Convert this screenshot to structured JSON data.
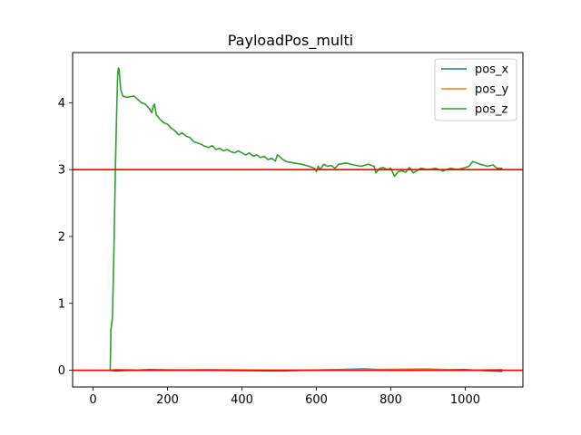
{
  "chart_data": {
    "type": "line",
    "title": "PayloadPos_multi",
    "xlabel": "",
    "ylabel": "",
    "xlim": [
      -55,
      1155
    ],
    "ylim": [
      -0.25,
      4.75
    ],
    "xticks": [
      0,
      200,
      400,
      600,
      800,
      1000
    ],
    "yticks": [
      0,
      1,
      2,
      3,
      4
    ],
    "legend_position": "top-right",
    "grid": false,
    "series": [
      {
        "name": "pos_x",
        "color": "#1f77b4",
        "points": [
          [
            46,
            0.0
          ],
          [
            60,
            -0.01
          ],
          [
            150,
            0.01
          ],
          [
            300,
            0.0
          ],
          [
            500,
            -0.01
          ],
          [
            730,
            0.02
          ],
          [
            800,
            0.0
          ],
          [
            1000,
            0.01
          ],
          [
            1100,
            -0.02
          ]
        ]
      },
      {
        "name": "pos_y",
        "color": "#ff7f0e",
        "points": [
          [
            46,
            0.0
          ],
          [
            60,
            0.01
          ],
          [
            150,
            0.0
          ],
          [
            300,
            0.01
          ],
          [
            500,
            0.0
          ],
          [
            730,
            0.01
          ],
          [
            900,
            0.02
          ],
          [
            1000,
            0.0
          ],
          [
            1100,
            0.01
          ]
        ]
      },
      {
        "name": "pos_z",
        "color": "#2ca02c",
        "points": [
          [
            46,
            0.0
          ],
          [
            48,
            0.6
          ],
          [
            52,
            0.8
          ],
          [
            56,
            1.8
          ],
          [
            60,
            3.0
          ],
          [
            63,
            3.8
          ],
          [
            66,
            4.4
          ],
          [
            68,
            4.52
          ],
          [
            70,
            4.5
          ],
          [
            74,
            4.2
          ],
          [
            80,
            4.1
          ],
          [
            90,
            4.08
          ],
          [
            100,
            4.09
          ],
          [
            110,
            4.1
          ],
          [
            120,
            4.05
          ],
          [
            130,
            4.0
          ],
          [
            140,
            3.98
          ],
          [
            150,
            3.92
          ],
          [
            158,
            3.85
          ],
          [
            162,
            3.95
          ],
          [
            165,
            3.98
          ],
          [
            170,
            3.82
          ],
          [
            180,
            3.75
          ],
          [
            190,
            3.7
          ],
          [
            200,
            3.68
          ],
          [
            210,
            3.62
          ],
          [
            220,
            3.58
          ],
          [
            230,
            3.52
          ],
          [
            240,
            3.55
          ],
          [
            250,
            3.5
          ],
          [
            260,
            3.48
          ],
          [
            270,
            3.42
          ],
          [
            280,
            3.4
          ],
          [
            290,
            3.38
          ],
          [
            300,
            3.35
          ],
          [
            310,
            3.33
          ],
          [
            320,
            3.36
          ],
          [
            330,
            3.3
          ],
          [
            340,
            3.32
          ],
          [
            350,
            3.28
          ],
          [
            360,
            3.3
          ],
          [
            370,
            3.27
          ],
          [
            380,
            3.25
          ],
          [
            390,
            3.28
          ],
          [
            400,
            3.25
          ],
          [
            410,
            3.22
          ],
          [
            420,
            3.25
          ],
          [
            430,
            3.2
          ],
          [
            440,
            3.22
          ],
          [
            450,
            3.18
          ],
          [
            460,
            3.2
          ],
          [
            470,
            3.15
          ],
          [
            480,
            3.17
          ],
          [
            490,
            3.13
          ],
          [
            495,
            3.22
          ],
          [
            500,
            3.2
          ],
          [
            510,
            3.15
          ],
          [
            520,
            3.12
          ],
          [
            540,
            3.1
          ],
          [
            560,
            3.08
          ],
          [
            580,
            3.05
          ],
          [
            595,
            3.02
          ],
          [
            600,
            2.97
          ],
          [
            605,
            3.05
          ],
          [
            610,
            3.0
          ],
          [
            620,
            3.08
          ],
          [
            630,
            3.05
          ],
          [
            640,
            3.06
          ],
          [
            650,
            3.02
          ],
          [
            660,
            3.08
          ],
          [
            680,
            3.1
          ],
          [
            700,
            3.07
          ],
          [
            720,
            3.05
          ],
          [
            740,
            3.08
          ],
          [
            755,
            3.05
          ],
          [
            760,
            2.95
          ],
          [
            770,
            3.02
          ],
          [
            780,
            3.03
          ],
          [
            790,
            3.0
          ],
          [
            800,
            3.02
          ],
          [
            810,
            2.9
          ],
          [
            820,
            2.97
          ],
          [
            830,
            2.98
          ],
          [
            840,
            2.96
          ],
          [
            850,
            3.03
          ],
          [
            860,
            2.95
          ],
          [
            870,
            2.98
          ],
          [
            880,
            3.02
          ],
          [
            900,
            3.0
          ],
          [
            920,
            3.02
          ],
          [
            940,
            2.98
          ],
          [
            960,
            3.02
          ],
          [
            980,
            3.0
          ],
          [
            1000,
            3.03
          ],
          [
            1010,
            3.05
          ],
          [
            1020,
            3.12
          ],
          [
            1030,
            3.1
          ],
          [
            1040,
            3.08
          ],
          [
            1060,
            3.05
          ],
          [
            1075,
            3.07
          ],
          [
            1085,
            3.02
          ],
          [
            1100,
            3.02
          ]
        ]
      }
    ],
    "reference_lines": [
      {
        "y": 3.0,
        "color": "#ff0000"
      },
      {
        "y": 0.0,
        "color": "#ff0000"
      }
    ]
  }
}
